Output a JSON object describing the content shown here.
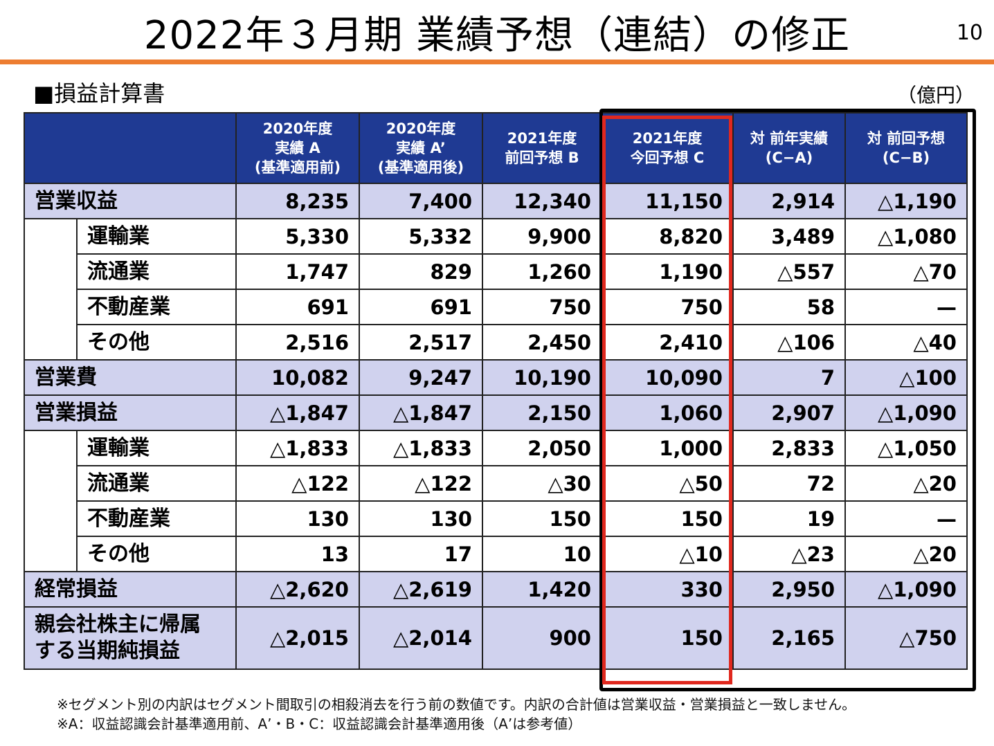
{
  "header": {
    "title": "2022年３月期 業績予想（連結）の修正",
    "page_number": "10",
    "accent_color": "#ED7D31"
  },
  "section": {
    "label": "■損益計算書",
    "unit": "（億円）"
  },
  "table": {
    "header_color": "#1F3A93",
    "highlight_color": "#D0D2EE",
    "columns": [
      "2020年度\n実績 A\n(基準適用前)",
      "2020年度\n実績 A’\n(基準適用後)",
      "2021年度\n前回予想 B",
      "2021年度\n今回予想 C",
      "対 前年実績\n(C−A)",
      "対 前回予想\n(C−B)"
    ],
    "rows": [
      {
        "label": "営業収益",
        "values": [
          "8,235",
          "7,400",
          "12,340",
          "11,150",
          "2,914",
          "△1,190"
        ]
      },
      {
        "label": "運輸業",
        "values": [
          "5,330",
          "5,332",
          "9,900",
          "8,820",
          "3,489",
          "△1,080"
        ]
      },
      {
        "label": "流通業",
        "values": [
          "1,747",
          "829",
          "1,260",
          "1,190",
          "△557",
          "△70"
        ]
      },
      {
        "label": "不動産業",
        "values": [
          "691",
          "691",
          "750",
          "750",
          "58",
          "—"
        ]
      },
      {
        "label": "その他",
        "values": [
          "2,516",
          "2,517",
          "2,450",
          "2,410",
          "△106",
          "△40"
        ]
      },
      {
        "label": "営業費",
        "values": [
          "10,082",
          "9,247",
          "10,190",
          "10,090",
          "7",
          "△100"
        ]
      },
      {
        "label": "営業損益",
        "values": [
          "△1,847",
          "△1,847",
          "2,150",
          "1,060",
          "2,907",
          "△1,090"
        ]
      },
      {
        "label": "運輸業",
        "values": [
          "△1,833",
          "△1,833",
          "2,050",
          "1,000",
          "2,833",
          "△1,050"
        ]
      },
      {
        "label": "流通業",
        "values": [
          "△122",
          "△122",
          "△30",
          "△50",
          "72",
          "△20"
        ]
      },
      {
        "label": "不動産業",
        "values": [
          "130",
          "130",
          "150",
          "150",
          "19",
          "—"
        ]
      },
      {
        "label": "その他",
        "values": [
          "13",
          "17",
          "10",
          "△10",
          "△23",
          "△20"
        ]
      },
      {
        "label": "経常損益",
        "values": [
          "△2,620",
          "△2,619",
          "1,420",
          "330",
          "2,950",
          "△1,090"
        ]
      },
      {
        "label": "親会社株主に帰属\nする当期純損益",
        "values": [
          "△2,015",
          "△2,014",
          "900",
          "150",
          "2,165",
          "△750"
        ]
      }
    ]
  },
  "highlight": {
    "red_box_color": "#E0281E",
    "black_box_color": "#000000"
  },
  "notes": [
    "※セグメント別の内訳はセグメント間取引の相殺消去を行う前の数値です。内訳の合計値は営業収益・営業損益と一致しません。",
    "※A：収益認識会計基準適用前、A’・B・C：収益認識会計基準適用後（A’は参考値）"
  ]
}
